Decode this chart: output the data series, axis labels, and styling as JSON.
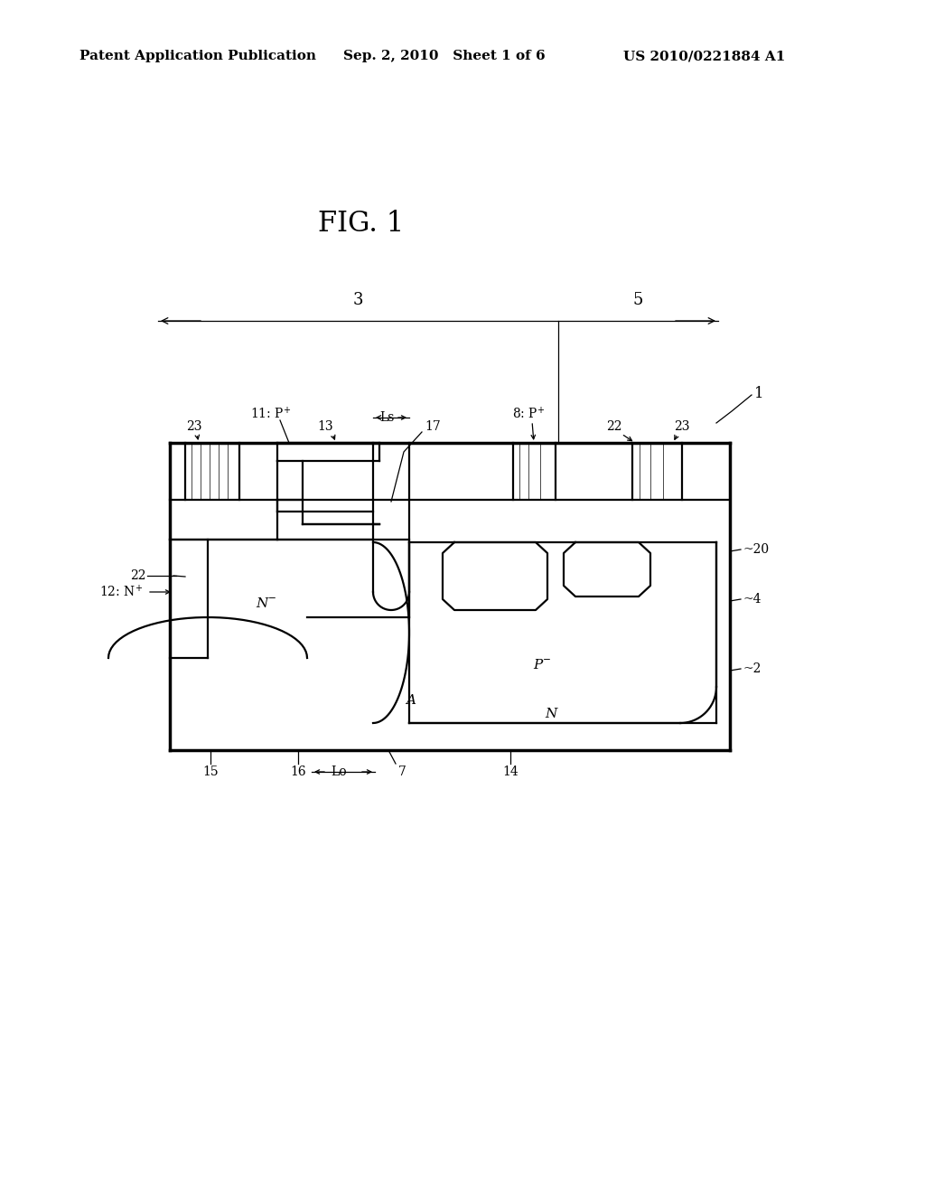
{
  "bg_color": "#ffffff",
  "header_left": "Patent Application Publication",
  "header_mid": "Sep. 2, 2010   Sheet 1 of 6",
  "header_right": "US 2010/0221884 A1",
  "fig_label": "FIG. 1",
  "title_fontsize": 22,
  "header_fontsize": 11,
  "label_fontsize": 11,
  "small_fontsize": 10,
  "lw_thin": 0.9,
  "lw_mid": 1.6,
  "lw_thick": 2.5
}
